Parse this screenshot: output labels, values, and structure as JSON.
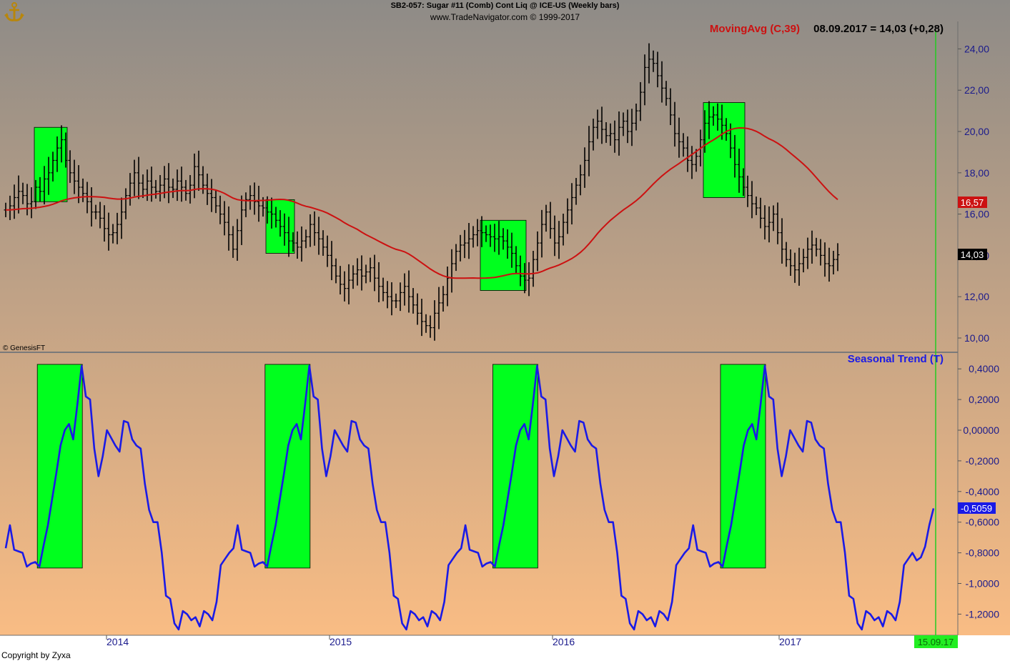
{
  "header": {
    "title_line": "SB2-057:  Sugar #11 (Comb) Cont Liq @ ICE-US  (Weekly bars)",
    "source_line": "www.TradeNavigator.com © 1999-2017"
  },
  "footer": {
    "copyright": "Copyright by Zyxa"
  },
  "colors": {
    "bg_top": "#8e8b87",
    "bg_bottom": "#fbbd84",
    "bars": "#000000",
    "moving_avg": "#cc1111",
    "seasonal": "#1a1ae6",
    "highlight": "#00ff1e",
    "marker_line": "#22cc22"
  },
  "chart_data": [
    {
      "type": "ohlc",
      "panel": "price",
      "indicator_label": "MovingAvg (C,39)",
      "value_label": "08.09.2017 = 14,03 (+0,28)",
      "watermark": "© GenesisFT",
      "y_ticks": [
        "10,00",
        "12,00",
        "14,00",
        "16,00",
        "18,00",
        "20,00",
        "22,00",
        "24,00"
      ],
      "ylim": [
        9.5,
        25.3
      ],
      "x_ticks": [
        "2014",
        "2015",
        "2016",
        "2017"
      ],
      "last_price": 14.03,
      "last_price_label": "14,03",
      "moving_avg_last_label": "16,57",
      "weekly_closes": [
        16.2,
        16.4,
        16.8,
        17.1,
        16.9,
        16.5,
        16.6,
        17.3,
        17.1,
        17.7,
        18.0,
        18.6,
        19.2,
        19.6,
        18.6,
        18.0,
        17.6,
        17.3,
        17.0,
        16.6,
        16.1,
        16.1,
        15.8,
        15.3,
        15.0,
        15.1,
        15.5,
        16.1,
        16.9,
        17.5,
        18.0,
        17.5,
        17.2,
        17.6,
        17.3,
        17.1,
        17.4,
        17.7,
        17.3,
        17.2,
        17.6,
        17.3,
        17.0,
        17.4,
        18.3,
        17.9,
        17.4,
        17.0,
        16.8,
        16.4,
        16.0,
        15.6,
        15.0,
        14.3,
        15.2,
        16.2,
        16.7,
        16.9,
        16.6,
        16.4,
        16.3,
        16.1,
        16.0,
        15.7,
        15.4,
        15.1,
        14.7,
        14.6,
        14.4,
        14.7,
        14.9,
        15.5,
        15.1,
        14.8,
        14.4,
        14.0,
        13.5,
        13.0,
        12.6,
        12.4,
        12.8,
        13.1,
        13.3,
        13.0,
        13.2,
        13.4,
        12.9,
        12.5,
        12.2,
        12.0,
        11.8,
        11.8,
        12.2,
        12.5,
        12.0,
        11.6,
        11.2,
        10.8,
        10.6,
        10.5,
        11.2,
        11.7,
        12.1,
        12.9,
        13.6,
        14.2,
        14.5,
        14.6,
        14.8,
        15.0,
        15.2,
        15.1,
        15.0,
        14.9,
        14.8,
        14.9,
        14.7,
        14.4,
        14.1,
        13.5,
        13.0,
        12.8,
        12.9,
        13.8,
        14.6,
        15.5,
        16.1,
        15.3,
        14.6,
        14.9,
        15.6,
        16.2,
        16.8,
        17.4,
        17.9,
        18.6,
        19.5,
        20.2,
        20.5,
        20.1,
        19.8,
        19.9,
        19.6,
        20.2,
        20.5,
        20.0,
        20.4,
        21.0,
        21.9,
        23.1,
        23.5,
        23.3,
        22.7,
        22.1,
        21.6,
        20.8,
        19.9,
        19.5,
        19.2,
        18.6,
        18.4,
        18.8,
        19.6,
        20.4,
        20.7,
        20.8,
        20.6,
        20.3,
        19.9,
        19.2,
        18.4,
        17.8,
        17.3,
        16.9,
        16.5,
        16.3,
        15.8,
        15.4,
        15.6,
        16.0,
        15.1,
        14.3,
        13.8,
        13.5,
        13.3,
        13.6,
        13.9,
        14.3,
        14.5,
        14.3,
        14.0,
        13.6,
        13.5,
        13.8,
        14.03
      ]
    },
    {
      "type": "line",
      "panel": "indicator",
      "series": [
        {
          "name": "Seasonal Trend (T)"
        }
      ],
      "y_ticks": [
        "0,4000",
        "0,2000",
        "0,00000",
        "-0,2000",
        "-0,4000",
        "-0,6000",
        "-0,8000",
        "-1,0000",
        "-1,2000"
      ],
      "ylim": [
        -1.34,
        0.49
      ],
      "last_value": -0.5059,
      "last_value_label": "-0,5059",
      "date_marker": "15.09.17",
      "annual_cycle": [
        -0.77,
        -0.62,
        -0.78,
        -0.79,
        -0.8,
        -0.89,
        -0.87,
        -0.86,
        -0.89,
        -0.75,
        -0.62,
        -0.45,
        -0.28,
        -0.1,
        0.0,
        0.04,
        -0.06,
        0.17,
        0.42,
        0.22,
        0.2,
        -0.12,
        -0.3,
        -0.17,
        0.0,
        -0.05,
        -0.1,
        -0.14,
        0.06,
        0.05,
        -0.06,
        -0.1,
        -0.12,
        -0.35,
        -0.52,
        -0.6,
        -0.6,
        -0.8,
        -1.08,
        -1.1,
        -1.26,
        -1.3,
        -1.18,
        -1.2,
        -1.24,
        -1.22,
        -1.28,
        -1.18,
        -1.2,
        -1.24,
        -1.12,
        -0.88,
        -0.84,
        -0.8
      ],
      "seasonal_extension": [
        -0.85,
        -0.83,
        -0.76,
        -0.62,
        -0.51
      ]
    }
  ]
}
